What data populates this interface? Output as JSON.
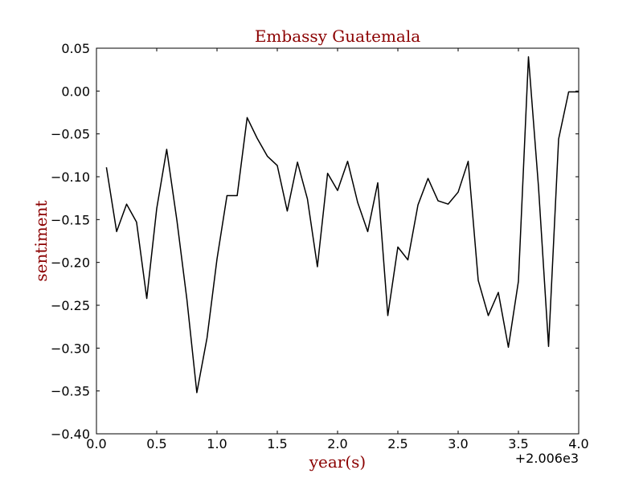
{
  "chart_data": {
    "type": "line",
    "title": "Embassy Guatemala",
    "xlabel": "year(s)",
    "ylabel": "sentiment",
    "x_offset_label": "+2.006e3",
    "xlim": [
      0.0,
      4.0
    ],
    "ylim": [
      -0.4,
      0.05
    ],
    "x_ticks": [
      "0.0",
      "0.5",
      "1.0",
      "1.5",
      "2.0",
      "2.5",
      "3.0",
      "3.5",
      "4.0"
    ],
    "y_ticks": [
      "0.05",
      "0.00",
      "−0.05",
      "−0.10",
      "−0.15",
      "−0.20",
      "−0.25",
      "−0.30",
      "−0.35",
      "−0.40"
    ],
    "grid": false,
    "colors": {
      "line": "#000000",
      "title": "#8b0000",
      "axis_label": "#8b0000"
    },
    "series": [
      {
        "x": [
          0.083,
          0.167,
          0.25,
          0.333,
          0.417,
          0.5,
          0.583,
          0.667,
          0.75,
          0.833,
          0.917,
          1.0,
          1.083,
          1.167,
          1.25,
          1.333,
          1.417,
          1.5,
          1.583,
          1.667,
          1.75,
          1.833,
          1.917,
          2.0,
          2.083,
          2.167,
          2.25,
          2.333,
          2.417,
          2.5,
          2.583,
          2.667,
          2.75,
          2.833,
          2.917,
          3.0,
          3.083,
          3.167,
          3.25,
          3.333,
          3.417,
          3.5,
          3.583,
          3.667,
          3.75,
          3.833,
          3.917,
          4.0
        ],
        "y": [
          -0.089,
          -0.164,
          -0.132,
          -0.153,
          -0.242,
          -0.137,
          -0.068,
          -0.151,
          -0.243,
          -0.352,
          -0.288,
          -0.196,
          -0.122,
          -0.122,
          -0.031,
          -0.055,
          -0.076,
          -0.087,
          -0.14,
          -0.083,
          -0.126,
          -0.205,
          -0.096,
          -0.116,
          -0.082,
          -0.13,
          -0.164,
          -0.107,
          -0.262,
          -0.182,
          -0.197,
          -0.133,
          -0.102,
          -0.128,
          -0.132,
          -0.118,
          -0.082,
          -0.221,
          -0.262,
          -0.235,
          -0.299,
          -0.222,
          0.04,
          -0.112,
          -0.298,
          -0.056,
          -0.001,
          -0.001
        ]
      }
    ]
  }
}
